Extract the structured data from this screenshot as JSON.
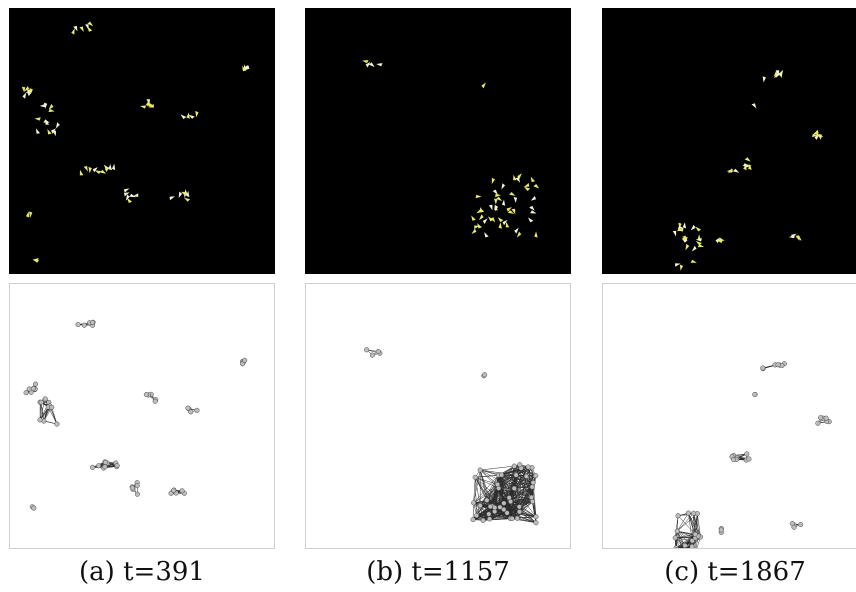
{
  "figure": {
    "panels": [
      {
        "id": "a",
        "caption": "(a) t=391"
      },
      {
        "id": "b",
        "caption": "(b) t=1157"
      },
      {
        "id": "c",
        "caption": "(c) t=1867"
      }
    ],
    "colors": {
      "sim_background": "#000000",
      "agent_yellow": "#e8ea6a",
      "agent_white": "#f4f4d8",
      "graph_node_fill": "#bdbdbd",
      "graph_node_stroke": "#444444",
      "graph_edge": "#2a2a2a",
      "graph_background": "#ffffff"
    },
    "row_types": [
      "simulation-snapshot",
      "interaction-graph"
    ]
  }
}
